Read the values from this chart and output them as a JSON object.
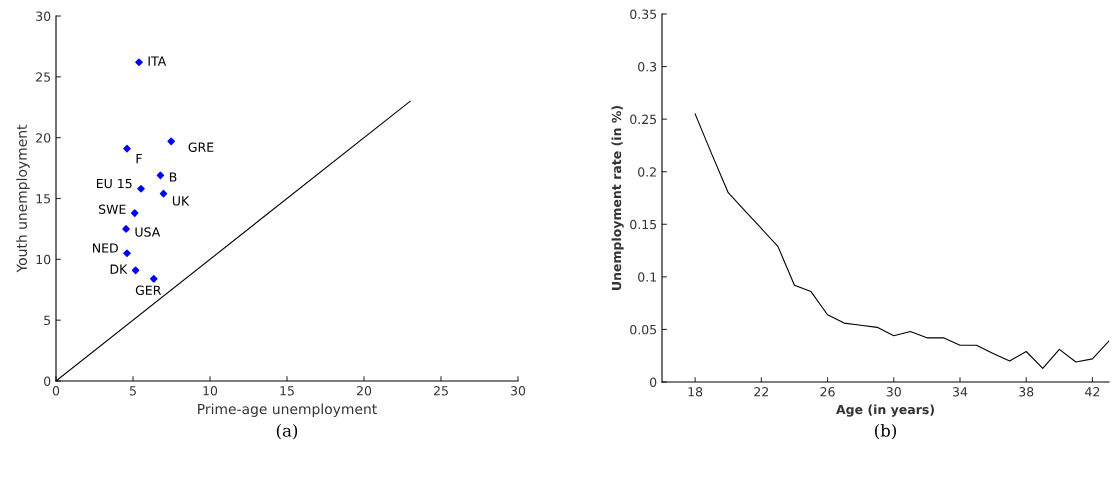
{
  "chart_data": [
    {
      "type": "scatter",
      "xlabel": "Prime-age unemployment",
      "ylabel": "Youth unemployment",
      "xlim": [
        0,
        30
      ],
      "ylim": [
        0,
        30
      ],
      "xticks": [
        0,
        5,
        10,
        15,
        20,
        25,
        30
      ],
      "yticks": [
        0,
        5,
        10,
        15,
        20,
        25,
        30
      ],
      "grid": false,
      "legend": false,
      "series": [
        {
          "type": "scatter",
          "marker": "diamond",
          "color": "#0000ff",
          "x": [
            5.39,
            7.48,
            4.61,
            6.78,
            5.52,
            6.98,
            5.11,
            4.55,
            4.61,
            5.17,
            6.35
          ],
          "values": [
            26.2,
            19.7,
            19.1,
            16.9,
            15.8,
            15.4,
            13.8,
            12.5,
            10.5,
            9.1,
            8.4
          ]
        },
        {
          "type": "line",
          "marker": "none",
          "color": "#000000",
          "x": [
            0,
            23
          ],
          "values": [
            0,
            23
          ]
        }
      ],
      "annotations": [
        {
          "text": "ITA",
          "x": 5.39,
          "y": 26.2
        },
        {
          "text": "GRE",
          "x": 7.48,
          "y": 19.7
        },
        {
          "text": "F",
          "x": 4.61,
          "y": 19.1
        },
        {
          "text": "B",
          "x": 6.78,
          "y": 16.9
        },
        {
          "text": "EU 15",
          "x": 5.52,
          "y": 15.8
        },
        {
          "text": "UK",
          "x": 6.98,
          "y": 15.4
        },
        {
          "text": "SWE",
          "x": 5.11,
          "y": 13.8
        },
        {
          "text": "USA",
          "x": 4.55,
          "y": 12.5
        },
        {
          "text": "NED",
          "x": 4.61,
          "y": 10.5
        },
        {
          "text": "DK",
          "x": 5.17,
          "y": 9.1
        },
        {
          "text": "GER",
          "x": 6.35,
          "y": 8.4
        },
        "(a)"
      ]
    },
    {
      "type": "line",
      "xlabel": "Age (in years)",
      "ylabel": "Unemployment rate (in %)",
      "xlim": [
        16,
        43
      ],
      "ylim": [
        0,
        0.35
      ],
      "xticks": [
        18,
        22,
        26,
        30,
        34,
        38,
        42
      ],
      "yticks": [
        0,
        0.05,
        0.1,
        0.15,
        0.2,
        0.25,
        0.3,
        0.35
      ],
      "marker": "none",
      "line_style": "solid",
      "grid": false,
      "legend": false,
      "series": [
        {
          "color": "#000000",
          "x": [
            18,
            19,
            20,
            21,
            22,
            23,
            24,
            25,
            26,
            27,
            28,
            29,
            30,
            31,
            32,
            33,
            34,
            35,
            36,
            37,
            38,
            39,
            40,
            41,
            42,
            43
          ],
          "values": [
            0.255,
            0.217,
            0.18,
            0.163,
            0.146,
            0.129,
            0.092,
            0.086,
            0.064,
            0.056,
            0.054,
            0.052,
            0.044,
            0.048,
            0.042,
            0.042,
            0.035,
            0.035,
            0.027,
            0.02,
            0.029,
            0.013,
            0.031,
            0.019,
            0.022,
            0.039
          ]
        }
      ],
      "annotations": [
        "(b)"
      ]
    }
  ]
}
